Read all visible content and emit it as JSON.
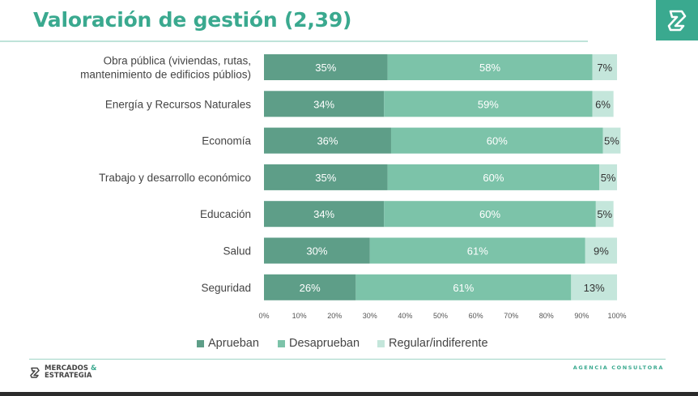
{
  "header": {
    "title": "Valoración de gestión (2,39)"
  },
  "colors": {
    "approve": "#5e9e88",
    "disapprove": "#7cc3a9",
    "neutral": "#c4e6db",
    "accent": "#3aa98f"
  },
  "chart_data": {
    "type": "bar",
    "orientation": "horizontal",
    "stacked": true,
    "categories": [
      [
        "Obra pública (viviendas, rutas,",
        "mantenimiento de edificios públios)"
      ],
      [
        "Energía y Recursos Naturales"
      ],
      [
        "Economía"
      ],
      [
        "Trabajo y desarrollo económico"
      ],
      [
        "Educación"
      ],
      [
        "Salud"
      ],
      [
        "Seguridad"
      ]
    ],
    "series": [
      {
        "name": "Aprueban",
        "values": [
          35,
          34,
          36,
          35,
          34,
          30,
          26
        ]
      },
      {
        "name": "Desaprueban",
        "values": [
          58,
          59,
          60,
          60,
          60,
          61,
          61
        ]
      },
      {
        "name": "Regular/indiferente",
        "values": [
          7,
          6,
          5,
          5,
          5,
          9,
          13
        ]
      }
    ],
    "value_suffix": "%",
    "xlim": [
      0,
      100
    ],
    "xticks": [
      "0%",
      "10%",
      "20%",
      "30%",
      "40%",
      "50%",
      "60%",
      "70%",
      "80%",
      "90%",
      "100%"
    ],
    "legend_position": "bottom",
    "grid": false
  },
  "footer": {
    "logo_line1": "MERCADOS",
    "logo_amp": "&",
    "logo_line2": "ESTRATEGIA",
    "tagline": "AGENCIA CONSULTORA"
  }
}
